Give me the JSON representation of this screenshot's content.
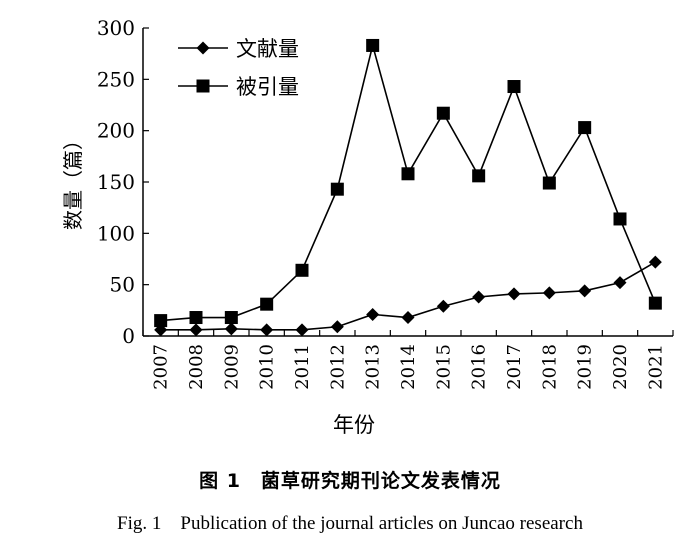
{
  "chart_data": {
    "type": "line",
    "x": [
      "2007",
      "2008",
      "2009",
      "2010",
      "2011",
      "2012",
      "2013",
      "2014",
      "2015",
      "2016",
      "2017",
      "2018",
      "2019",
      "2020",
      "2021"
    ],
    "series": [
      {
        "name": "文献量",
        "marker": "diamond",
        "values": [
          6,
          6,
          7,
          6,
          6,
          9,
          21,
          18,
          29,
          38,
          41,
          42,
          44,
          52,
          72
        ]
      },
      {
        "name": "被引量",
        "marker": "square",
        "values": [
          15,
          18,
          18,
          31,
          64,
          143,
          283,
          158,
          217,
          156,
          243,
          149,
          203,
          114,
          32
        ]
      }
    ],
    "xlabel": "年份",
    "ylabel": "数量（篇）",
    "ylim": [
      0,
      300
    ],
    "yticks": [
      "0",
      "50",
      "100",
      "150",
      "200",
      "250",
      "300"
    ],
    "grid": false,
    "legend": "top-left"
  },
  "caption": {
    "cn": "图 1　菌草研究期刊论文发表情况",
    "en": "Fig. 1　Publication of the journal articles on Juncao research"
  },
  "colors": {
    "line": "#000000",
    "background": "#ffffff"
  }
}
